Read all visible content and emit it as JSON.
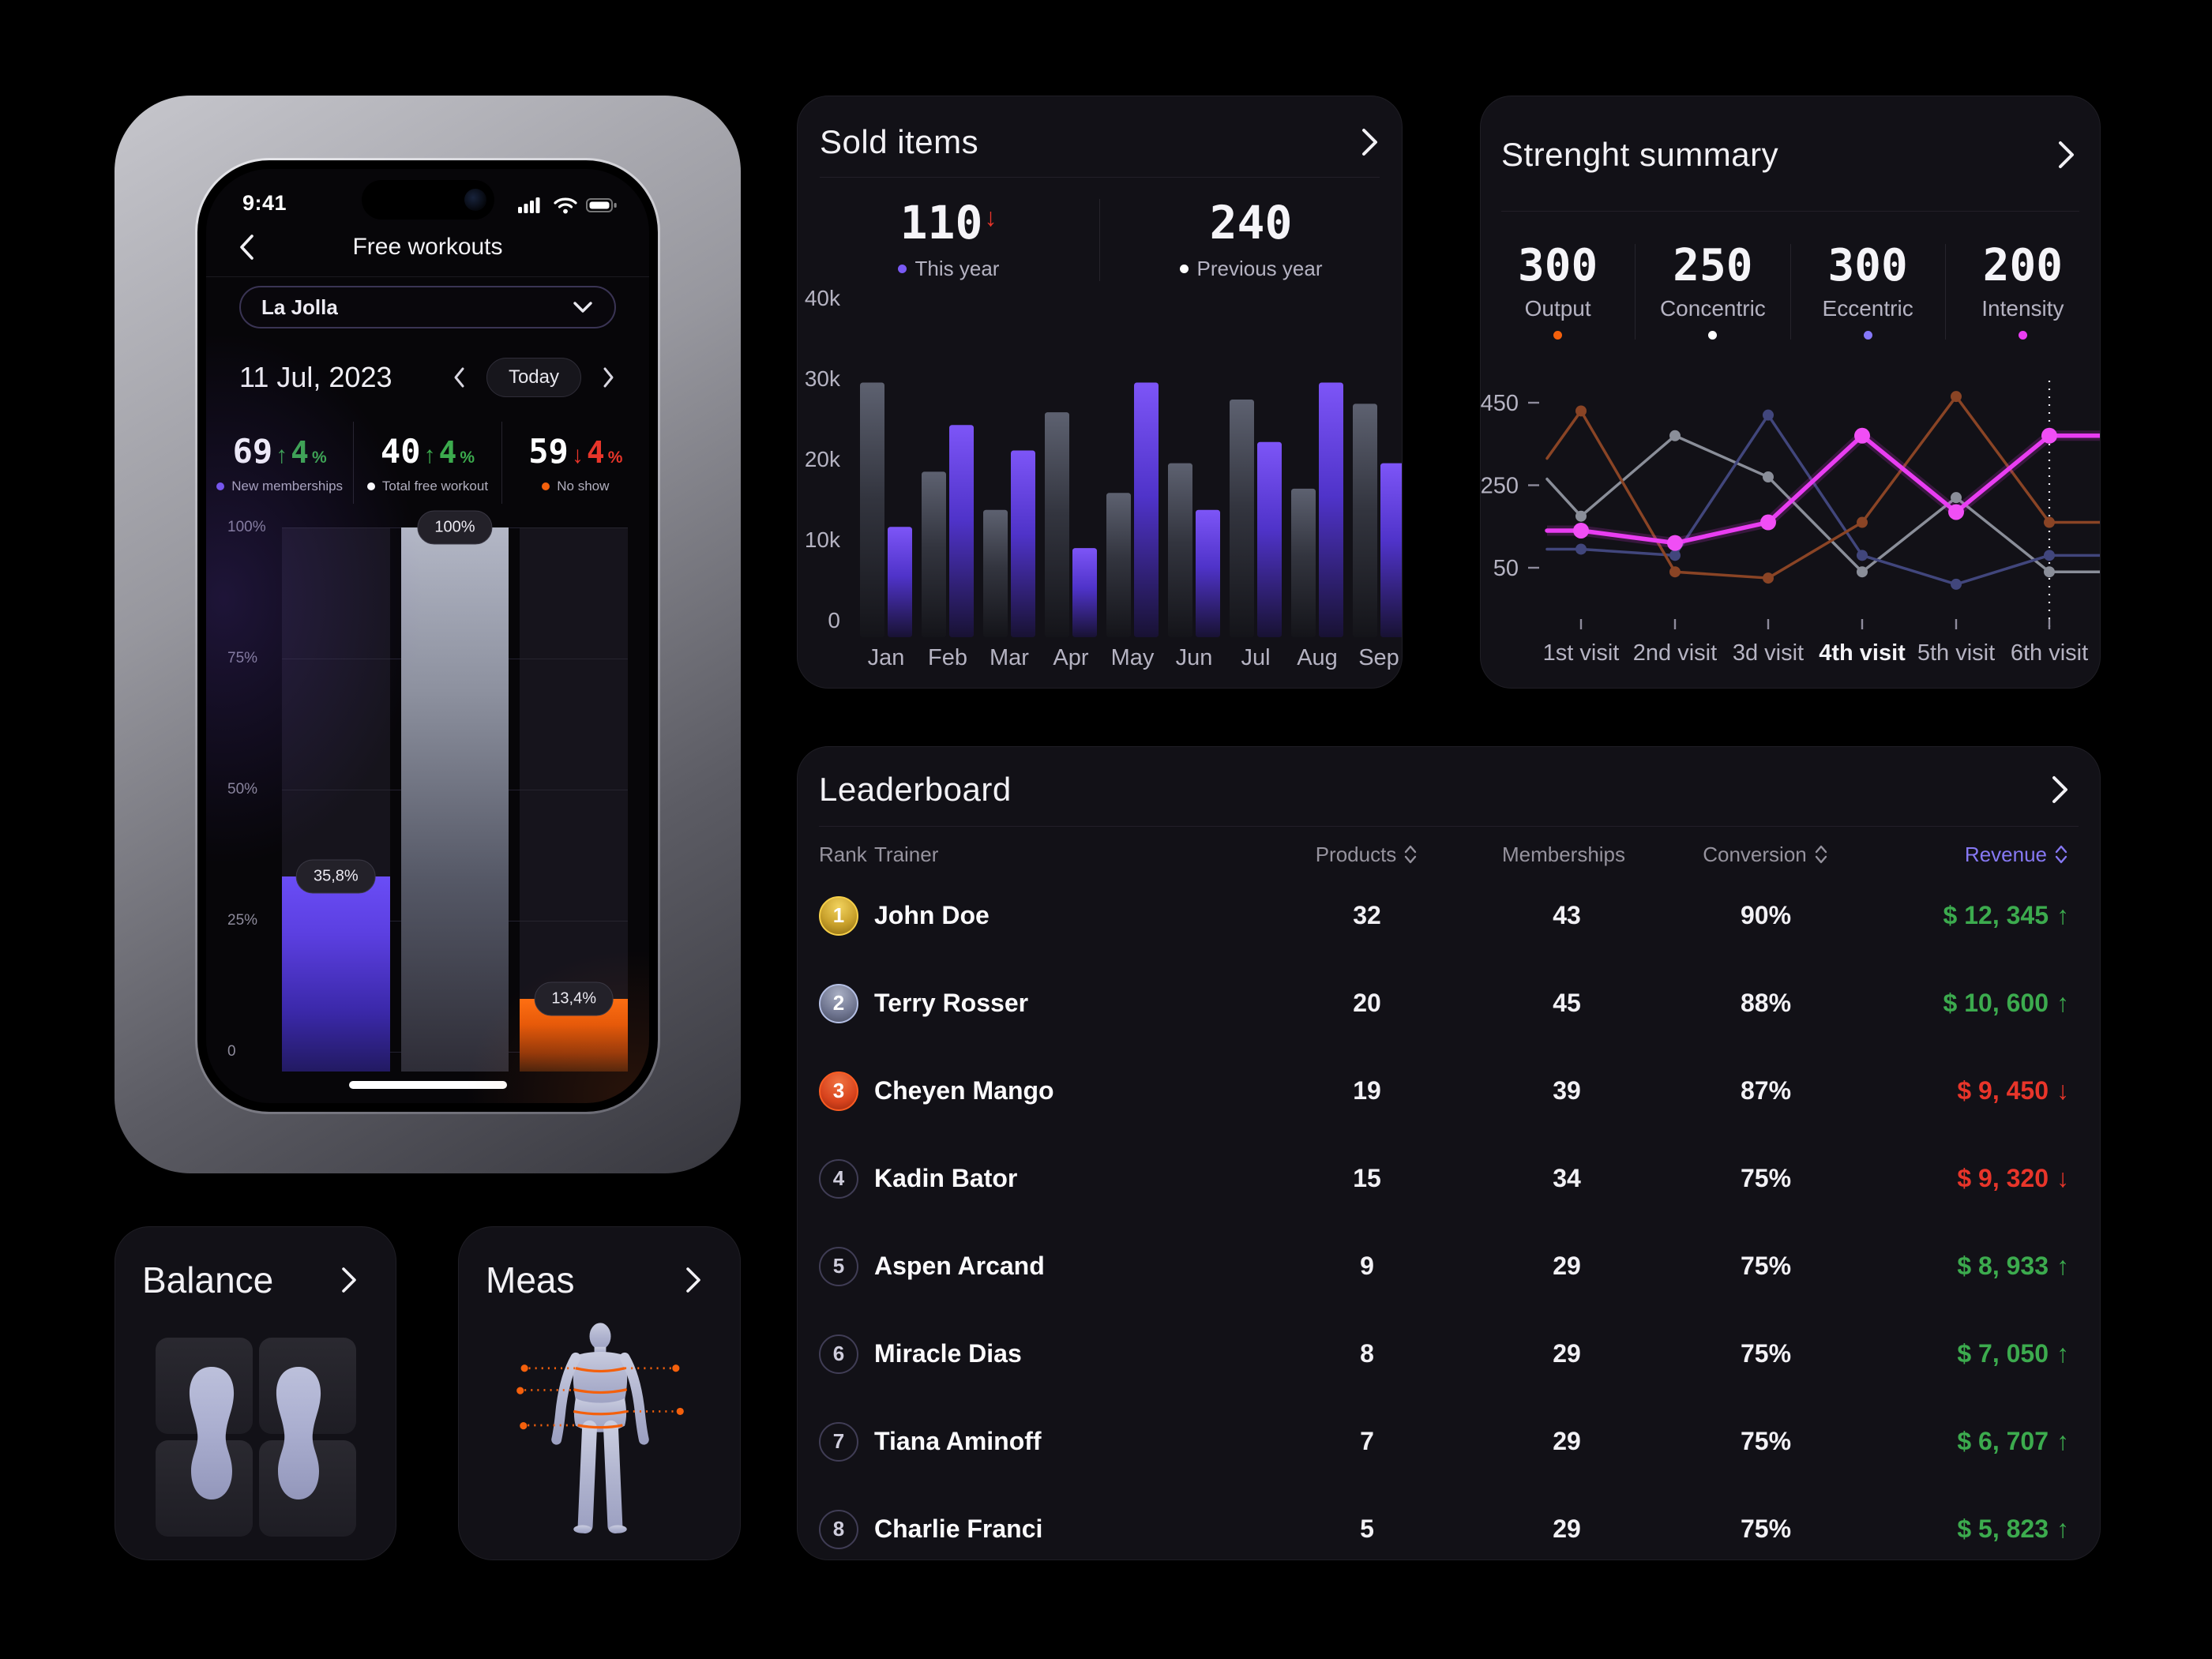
{
  "phone": {
    "time": "9:41",
    "title": "Free workouts",
    "location": "La Jolla",
    "date": "11 Jul, 2023",
    "today_label": "Today",
    "stats": [
      {
        "value": "69",
        "delta_value": "4",
        "delta_unit": "%",
        "direction": "up",
        "label": "New memberships",
        "dot_color": "#7a5af5"
      },
      {
        "value": "40",
        "delta_value": "4",
        "delta_unit": "%",
        "direction": "up",
        "label": "Total free workout",
        "dot_color": "#ffffff"
      },
      {
        "value": "59",
        "delta_value": "4",
        "delta_unit": "%",
        "direction": "down",
        "label": "No show",
        "dot_color": "#f4600c"
      }
    ],
    "chart_data": {
      "type": "bar",
      "y_ticks": [
        "100%",
        "75%",
        "50%",
        "25%",
        "0"
      ],
      "bars": [
        {
          "label": "35,8%",
          "value_pct": 35.8,
          "color_key": "purple"
        },
        {
          "label": "100%",
          "value_pct": 100,
          "color_key": "gray"
        },
        {
          "label": "13,4%",
          "value_pct": 13.4,
          "color_key": "orange"
        }
      ]
    }
  },
  "sold_items": {
    "title": "Sold items",
    "stats": [
      {
        "value": "110",
        "trend": "down",
        "label": "This year",
        "dot_color": "#7a5af5"
      },
      {
        "value": "240",
        "trend": "",
        "label": "Previous year",
        "dot_color": "#ffffff"
      }
    ],
    "chart_data": {
      "type": "bar",
      "categories": [
        "Jan",
        "Feb",
        "Mar",
        "Apr",
        "May",
        "Jun",
        "Jul",
        "Aug",
        "Sep"
      ],
      "series": [
        {
          "name": "Previous year",
          "color_key": "gray",
          "values_k": [
            30,
            19.5,
            15,
            26.5,
            17,
            20.5,
            28,
            17.5,
            27.5
          ]
        },
        {
          "name": "This year",
          "color_key": "purple",
          "values_k": [
            13,
            25,
            22,
            10.5,
            30,
            15,
            23,
            30,
            20.5
          ]
        }
      ],
      "y_ticks": [
        "40k",
        "30k",
        "20k",
        "10k",
        "0"
      ],
      "ylim_k": [
        0,
        40
      ]
    }
  },
  "strength": {
    "title": "Strenght summary",
    "stats": [
      {
        "value": "300",
        "label": "Output",
        "dot_color": "#f4600c"
      },
      {
        "value": "250",
        "label": "Concentric",
        "dot_color": "#ffffff"
      },
      {
        "value": "300",
        "label": "Eccentric",
        "dot_color": "#8678f9"
      },
      {
        "value": "200",
        "label": "Intensity",
        "dot_color": "#e93df2"
      }
    ],
    "chart_data": {
      "type": "line",
      "x_labels": [
        "1st visit",
        "2nd visit",
        "3d visit",
        "4th visit",
        "5th visit",
        "6th visit"
      ],
      "highlighted_x_label": "4th visit",
      "dashed_marker_x": "6th visit",
      "y_ticks": [
        450,
        250,
        50
      ],
      "series": [
        {
          "name": "Concentric",
          "color": "#8a8e99",
          "style": "normal",
          "values": [
            175,
            370,
            270,
            40,
            220,
            40
          ],
          "edge_left": 265,
          "edge_right": 40
        },
        {
          "name": "Eccentric",
          "color": "#41467c",
          "style": "normal",
          "values": [
            95,
            80,
            420,
            80,
            10,
            80
          ],
          "edge_left": 95,
          "edge_right": 80
        },
        {
          "name": "Output",
          "color": "#8a4425",
          "style": "normal",
          "values": [
            430,
            40,
            25,
            160,
            465,
            160
          ],
          "edge_left": 315,
          "edge_right": 160
        },
        {
          "name": "Intensity",
          "color": "#e93df2",
          "style": "highlight",
          "values": [
            140,
            110,
            160,
            370,
            185,
            370
          ],
          "edge_left": 140,
          "edge_right": 370
        }
      ]
    }
  },
  "leaderboard": {
    "title": "Leaderboard",
    "columns": [
      {
        "label": "Rank",
        "sortable": false,
        "align": "left",
        "active": false
      },
      {
        "label": "Trainer",
        "sortable": false,
        "align": "left",
        "active": false
      },
      {
        "label": "Products",
        "sortable": true,
        "align": "center",
        "active": false
      },
      {
        "label": "Memberships",
        "sortable": true,
        "align": "center",
        "active": false
      },
      {
        "label": "Conversion",
        "sortable": true,
        "align": "center",
        "active": false
      },
      {
        "label": "Revenue",
        "sortable": true,
        "align": "right",
        "active": true
      }
    ],
    "rows": [
      {
        "rank": "1",
        "badge": "gold",
        "name": "John Doe",
        "products": "32",
        "memberships": "43",
        "conversion": "90%",
        "revenue": "$ 12, 345",
        "trend": "up"
      },
      {
        "rank": "2",
        "badge": "silver",
        "name": "Terry Rosser",
        "products": "20",
        "memberships": "45",
        "conversion": "88%",
        "revenue": "$ 10, 600",
        "trend": "up"
      },
      {
        "rank": "3",
        "badge": "bronze",
        "name": "Cheyen Mango",
        "products": "19",
        "memberships": "39",
        "conversion": "87%",
        "revenue": "$ 9, 450",
        "trend": "down"
      },
      {
        "rank": "4",
        "badge": "plain",
        "name": "Kadin Bator",
        "products": "15",
        "memberships": "34",
        "conversion": "75%",
        "revenue": "$ 9, 320",
        "trend": "down"
      },
      {
        "rank": "5",
        "badge": "plain",
        "name": "Aspen Arcand",
        "products": "9",
        "memberships": "29",
        "conversion": "75%",
        "revenue": "$ 8, 933",
        "trend": "up"
      },
      {
        "rank": "6",
        "badge": "plain",
        "name": "Miracle Dias",
        "products": "8",
        "memberships": "29",
        "conversion": "75%",
        "revenue": "$ 7, 050",
        "trend": "up"
      },
      {
        "rank": "7",
        "badge": "plain",
        "name": "Tiana Aminoff",
        "products": "7",
        "memberships": "29",
        "conversion": "75%",
        "revenue": "$ 6, 707",
        "trend": "up"
      },
      {
        "rank": "8",
        "badge": "plain",
        "name": "Charlie Franci",
        "products": "5",
        "memberships": "29",
        "conversion": "75%",
        "revenue": "$ 5, 823",
        "trend": "up"
      }
    ]
  },
  "balance": {
    "title": "Balance"
  },
  "meas": {
    "title": "Meas"
  },
  "colors": {
    "green": "#3cab4e",
    "red": "#e8352a",
    "revenue_header": "#8678f3",
    "measure_orange": "#f4600c"
  }
}
